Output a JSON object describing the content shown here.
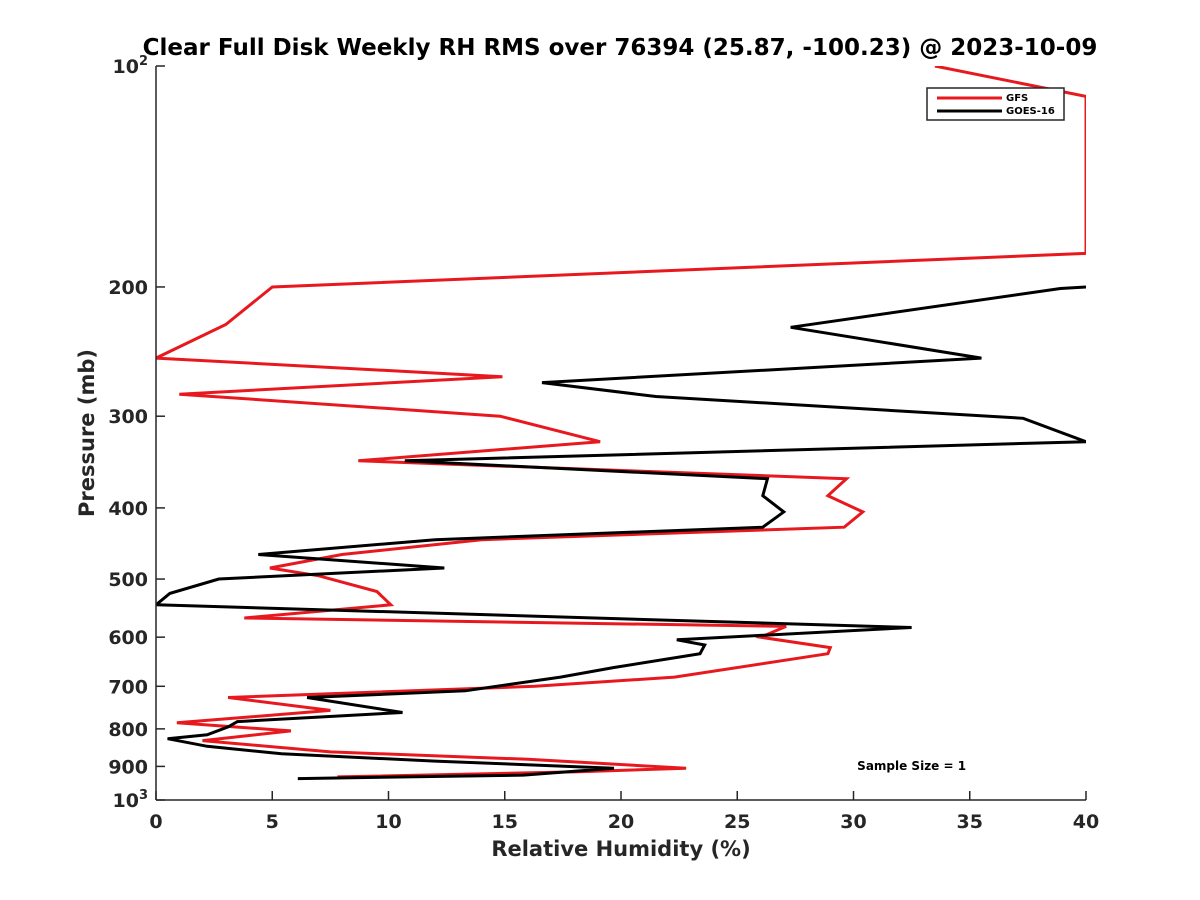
{
  "chart_data": {
    "type": "line",
    "title": "Clear Full Disk Weekly RH RMS over 76394 (25.87, -100.23) @ 2023-10-09",
    "xlabel": "Relative Humidity (%)",
    "ylabel": "Pressure (mb)",
    "xlim": [
      0,
      40
    ],
    "ylim": [
      100,
      1000
    ],
    "yscale": "log",
    "y_reversed": true,
    "grid": false,
    "legend_position": "top-right",
    "x_ticks": [
      0,
      5,
      10,
      15,
      20,
      25,
      30,
      35,
      40
    ],
    "y_ticks": [
      {
        "value": 100,
        "label": "10",
        "exp": "2"
      },
      {
        "value": 200,
        "label": "200"
      },
      {
        "value": 300,
        "label": "300"
      },
      {
        "value": 400,
        "label": "400"
      },
      {
        "value": 500,
        "label": "500"
      },
      {
        "value": 600,
        "label": "600"
      },
      {
        "value": 700,
        "label": "700"
      },
      {
        "value": 800,
        "label": "800"
      },
      {
        "value": 900,
        "label": "900"
      },
      {
        "value": 1000,
        "label": "10",
        "exp": "3"
      }
    ],
    "series": [
      {
        "name": "GFS",
        "color": "#e8191e",
        "points": [
          {
            "x": 33.5,
            "y": 100
          },
          {
            "x": 40,
            "y": 110
          },
          {
            "x": 40,
            "y": 180
          },
          {
            "x": 5.0,
            "y": 200
          },
          {
            "x": 3.0,
            "y": 225
          },
          {
            "x": 0.0,
            "y": 250
          },
          {
            "x": 14.9,
            "y": 265
          },
          {
            "x": 1.0,
            "y": 280
          },
          {
            "x": 14.8,
            "y": 300
          },
          {
            "x": 19.1,
            "y": 325
          },
          {
            "x": 8.7,
            "y": 345
          },
          {
            "x": 29.7,
            "y": 365
          },
          {
            "x": 28.9,
            "y": 385
          },
          {
            "x": 30.4,
            "y": 405
          },
          {
            "x": 29.6,
            "y": 425
          },
          {
            "x": 14.0,
            "y": 442
          },
          {
            "x": 8.0,
            "y": 463
          },
          {
            "x": 4.9,
            "y": 483
          },
          {
            "x": 7.0,
            "y": 495
          },
          {
            "x": 9.5,
            "y": 520
          },
          {
            "x": 10.1,
            "y": 542
          },
          {
            "x": 3.8,
            "y": 565
          },
          {
            "x": 27.1,
            "y": 580
          },
          {
            "x": 26.0,
            "y": 600
          },
          {
            "x": 29.0,
            "y": 620
          },
          {
            "x": 28.9,
            "y": 632
          },
          {
            "x": 22.3,
            "y": 680
          },
          {
            "x": 16.3,
            "y": 700
          },
          {
            "x": 3.1,
            "y": 725
          },
          {
            "x": 7.5,
            "y": 755
          },
          {
            "x": 0.9,
            "y": 785
          },
          {
            "x": 5.8,
            "y": 805
          },
          {
            "x": 2.0,
            "y": 830
          },
          {
            "x": 7.5,
            "y": 860
          },
          {
            "x": 16.0,
            "y": 880
          },
          {
            "x": 22.8,
            "y": 905
          },
          {
            "x": 18.2,
            "y": 915
          },
          {
            "x": 7.8,
            "y": 930
          }
        ]
      },
      {
        "name": "GOES-16",
        "color": "#000000",
        "points": [
          {
            "x": 40,
            "y": 200
          },
          {
            "x": 38.9,
            "y": 201
          },
          {
            "x": 27.3,
            "y": 227
          },
          {
            "x": 35.5,
            "y": 250
          },
          {
            "x": 16.6,
            "y": 270
          },
          {
            "x": 21.5,
            "y": 282
          },
          {
            "x": 37.3,
            "y": 302
          },
          {
            "x": 40,
            "y": 325
          },
          {
            "x": 10.7,
            "y": 345
          },
          {
            "x": 26.3,
            "y": 365
          },
          {
            "x": 26.1,
            "y": 385
          },
          {
            "x": 27.0,
            "y": 405
          },
          {
            "x": 26.1,
            "y": 425
          },
          {
            "x": 12.0,
            "y": 442
          },
          {
            "x": 4.4,
            "y": 463
          },
          {
            "x": 12.4,
            "y": 483
          },
          {
            "x": 2.7,
            "y": 500
          },
          {
            "x": 0.6,
            "y": 523
          },
          {
            "x": 0.0,
            "y": 542
          },
          {
            "x": 32.5,
            "y": 582
          },
          {
            "x": 22.4,
            "y": 605
          },
          {
            "x": 23.6,
            "y": 615
          },
          {
            "x": 23.4,
            "y": 632
          },
          {
            "x": 19.7,
            "y": 660
          },
          {
            "x": 17.4,
            "y": 680
          },
          {
            "x": 13.3,
            "y": 710
          },
          {
            "x": 6.5,
            "y": 725
          },
          {
            "x": 10.6,
            "y": 760
          },
          {
            "x": 3.5,
            "y": 782
          },
          {
            "x": 3.1,
            "y": 795
          },
          {
            "x": 2.2,
            "y": 815
          },
          {
            "x": 0.5,
            "y": 825
          },
          {
            "x": 2.2,
            "y": 845
          },
          {
            "x": 5.4,
            "y": 865
          },
          {
            "x": 12.0,
            "y": 885
          },
          {
            "x": 19.7,
            "y": 905
          },
          {
            "x": 15.8,
            "y": 925
          },
          {
            "x": 6.1,
            "y": 935
          }
        ]
      }
    ],
    "annotations": [
      {
        "text": "Sample Size = 1",
        "x": 32.5,
        "y": 910
      }
    ]
  }
}
